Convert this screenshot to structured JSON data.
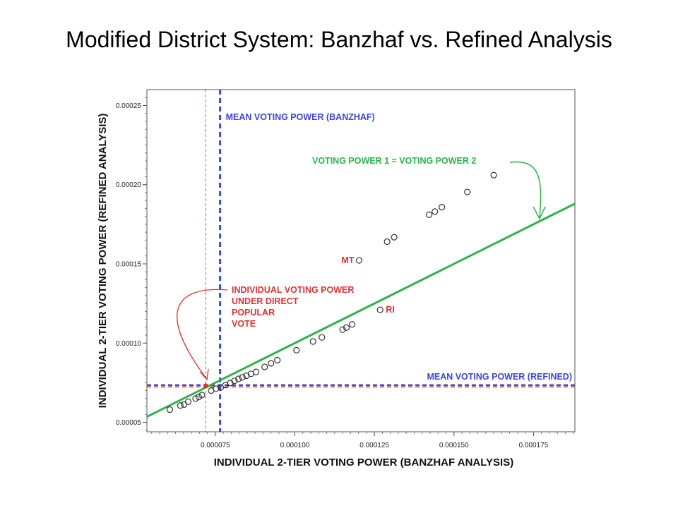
{
  "slide": {
    "title": "Modified District System: Banzhaf vs. Refined Analysis"
  },
  "chart_data": {
    "type": "scatter",
    "title": "Modified District System: Banzhaf vs. Refined Analysis",
    "xlabel": "INDIVIDUAL 2-TIER VOTING POWER (BANZHAF ANALYSIS)",
    "ylabel": "INDIVIDUAL 2-TIER VOTING POWER (REFINED ANALYSIS)",
    "xlim": [
      5.35e-05,
      0.000188
    ],
    "ylim": [
      4.4e-05,
      0.00026
    ],
    "x_ticks": [
      {
        "value": 7.5e-05,
        "label": "0.000075"
      },
      {
        "value": 0.0001,
        "label": "0.000100"
      },
      {
        "value": 0.000125,
        "label": "0.000125"
      },
      {
        "value": 0.00015,
        "label": "0.000150"
      },
      {
        "value": 0.000175,
        "label": "0.000175"
      }
    ],
    "y_ticks": [
      {
        "value": 5e-05,
        "label": "0.00005"
      },
      {
        "value": 0.0001,
        "label": "0.00010"
      },
      {
        "value": 0.00015,
        "label": "0.00015"
      },
      {
        "value": 0.0002,
        "label": "0.00020"
      },
      {
        "value": 0.00025,
        "label": "0.00025"
      }
    ],
    "grid": false,
    "points": [
      {
        "x": 6.07e-05,
        "y": 5.8e-05
      },
      {
        "x": 6.4e-05,
        "y": 6.06e-05
      },
      {
        "x": 6.52e-05,
        "y": 6.12e-05
      },
      {
        "x": 6.65e-05,
        "y": 6.3e-05
      },
      {
        "x": 6.88e-05,
        "y": 6.5e-05
      },
      {
        "x": 6.98e-05,
        "y": 6.6e-05
      },
      {
        "x": 7.08e-05,
        "y": 6.72e-05
      },
      {
        "x": 7.37e-05,
        "y": 7e-05
      },
      {
        "x": 7.52e-05,
        "y": 7.12e-05
      },
      {
        "x": 7.67e-05,
        "y": 7.2e-05
      },
      {
        "x": 7.82e-05,
        "y": 7.35e-05
      },
      {
        "x": 7.97e-05,
        "y": 7.48e-05
      },
      {
        "x": 8.1e-05,
        "y": 7.62e-05
      },
      {
        "x": 8.23e-05,
        "y": 7.74e-05
      },
      {
        "x": 8.35e-05,
        "y": 7.84e-05
      },
      {
        "x": 8.48e-05,
        "y": 7.94e-05
      },
      {
        "x": 8.62e-05,
        "y": 8.06e-05
      },
      {
        "x": 8.78e-05,
        "y": 8.18e-05
      },
      {
        "x": 9.05e-05,
        "y": 8.5e-05
      },
      {
        "x": 9.25e-05,
        "y": 8.72e-05
      },
      {
        "x": 9.45e-05,
        "y": 8.92e-05
      },
      {
        "x": 0.0001005,
        "y": 9.55e-05
      },
      {
        "x": 0.0001057,
        "y": 0.000101
      },
      {
        "x": 0.0001085,
        "y": 0.0001036
      },
      {
        "x": 0.000115,
        "y": 0.0001085
      },
      {
        "x": 0.0001162,
        "y": 0.0001098
      },
      {
        "x": 0.000118,
        "y": 0.0001118
      },
      {
        "x": 0.0001202,
        "y": 0.0001522,
        "label": "MT"
      },
      {
        "x": 0.0001268,
        "y": 0.000121,
        "label": "RI"
      },
      {
        "x": 0.000129,
        "y": 0.000164
      },
      {
        "x": 0.0001312,
        "y": 0.0001668
      },
      {
        "x": 0.0001422,
        "y": 0.000181
      },
      {
        "x": 0.000144,
        "y": 0.000183
      },
      {
        "x": 0.0001462,
        "y": 0.0001858
      },
      {
        "x": 0.0001542,
        "y": 0.0001954
      },
      {
        "x": 0.0001625,
        "y": 0.000206
      }
    ],
    "direct_vote_point": {
      "x": 7.2e-05,
      "y": 7.3e-05
    },
    "reference_lines": {
      "identity": {
        "label": "VOTING POWER 1 = VOTING POWER 2",
        "color": "#2db34a"
      },
      "mean_banzhaf": {
        "x": 7.65e-05,
        "label": "MEAN VOTING POWER (BANZHAF)",
        "color": "#3a44e0"
      },
      "mean_refined": {
        "y": 7.3e-05,
        "label": "MEAN VOTING POWER (REFINED)",
        "color": "#3a44e0"
      },
      "direct_popular": {
        "x": 7.2e-05,
        "y": 7.3e-05,
        "label_lines": [
          "INDIVIDUAL VOTING POWER",
          "UNDER DIRECT",
          "POPULAR",
          "VOTE"
        ],
        "color": "#e03030"
      }
    },
    "colors": {
      "marker": "#333333",
      "accent_red": "#e03030",
      "line_green": "#2db34a",
      "line_blue": "#3a44e0"
    }
  }
}
